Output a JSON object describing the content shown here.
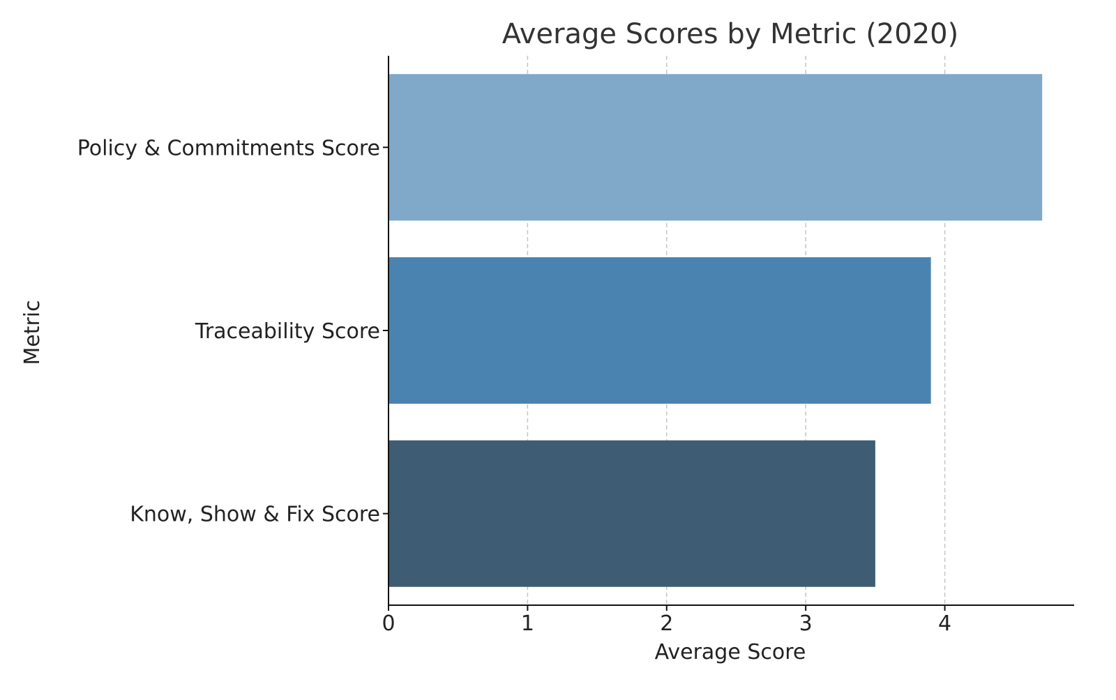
{
  "chart_data": {
    "type": "bar",
    "orientation": "horizontal",
    "title": "Average Scores by Metric (2020)",
    "xlabel": "Average Score",
    "ylabel": "Metric",
    "categories": [
      "Policy & Commitments Score",
      "Traceability Score",
      "Know, Show & Fix Score"
    ],
    "values": [
      4.7,
      3.9,
      3.5
    ],
    "colors": [
      "#7fa8c9",
      "#4a83b0",
      "#3e5c73"
    ],
    "xlim": [
      0,
      4.93
    ],
    "x_ticks": [
      0,
      1,
      2,
      3,
      4
    ],
    "grid": "x-dashed",
    "legend": "none"
  }
}
